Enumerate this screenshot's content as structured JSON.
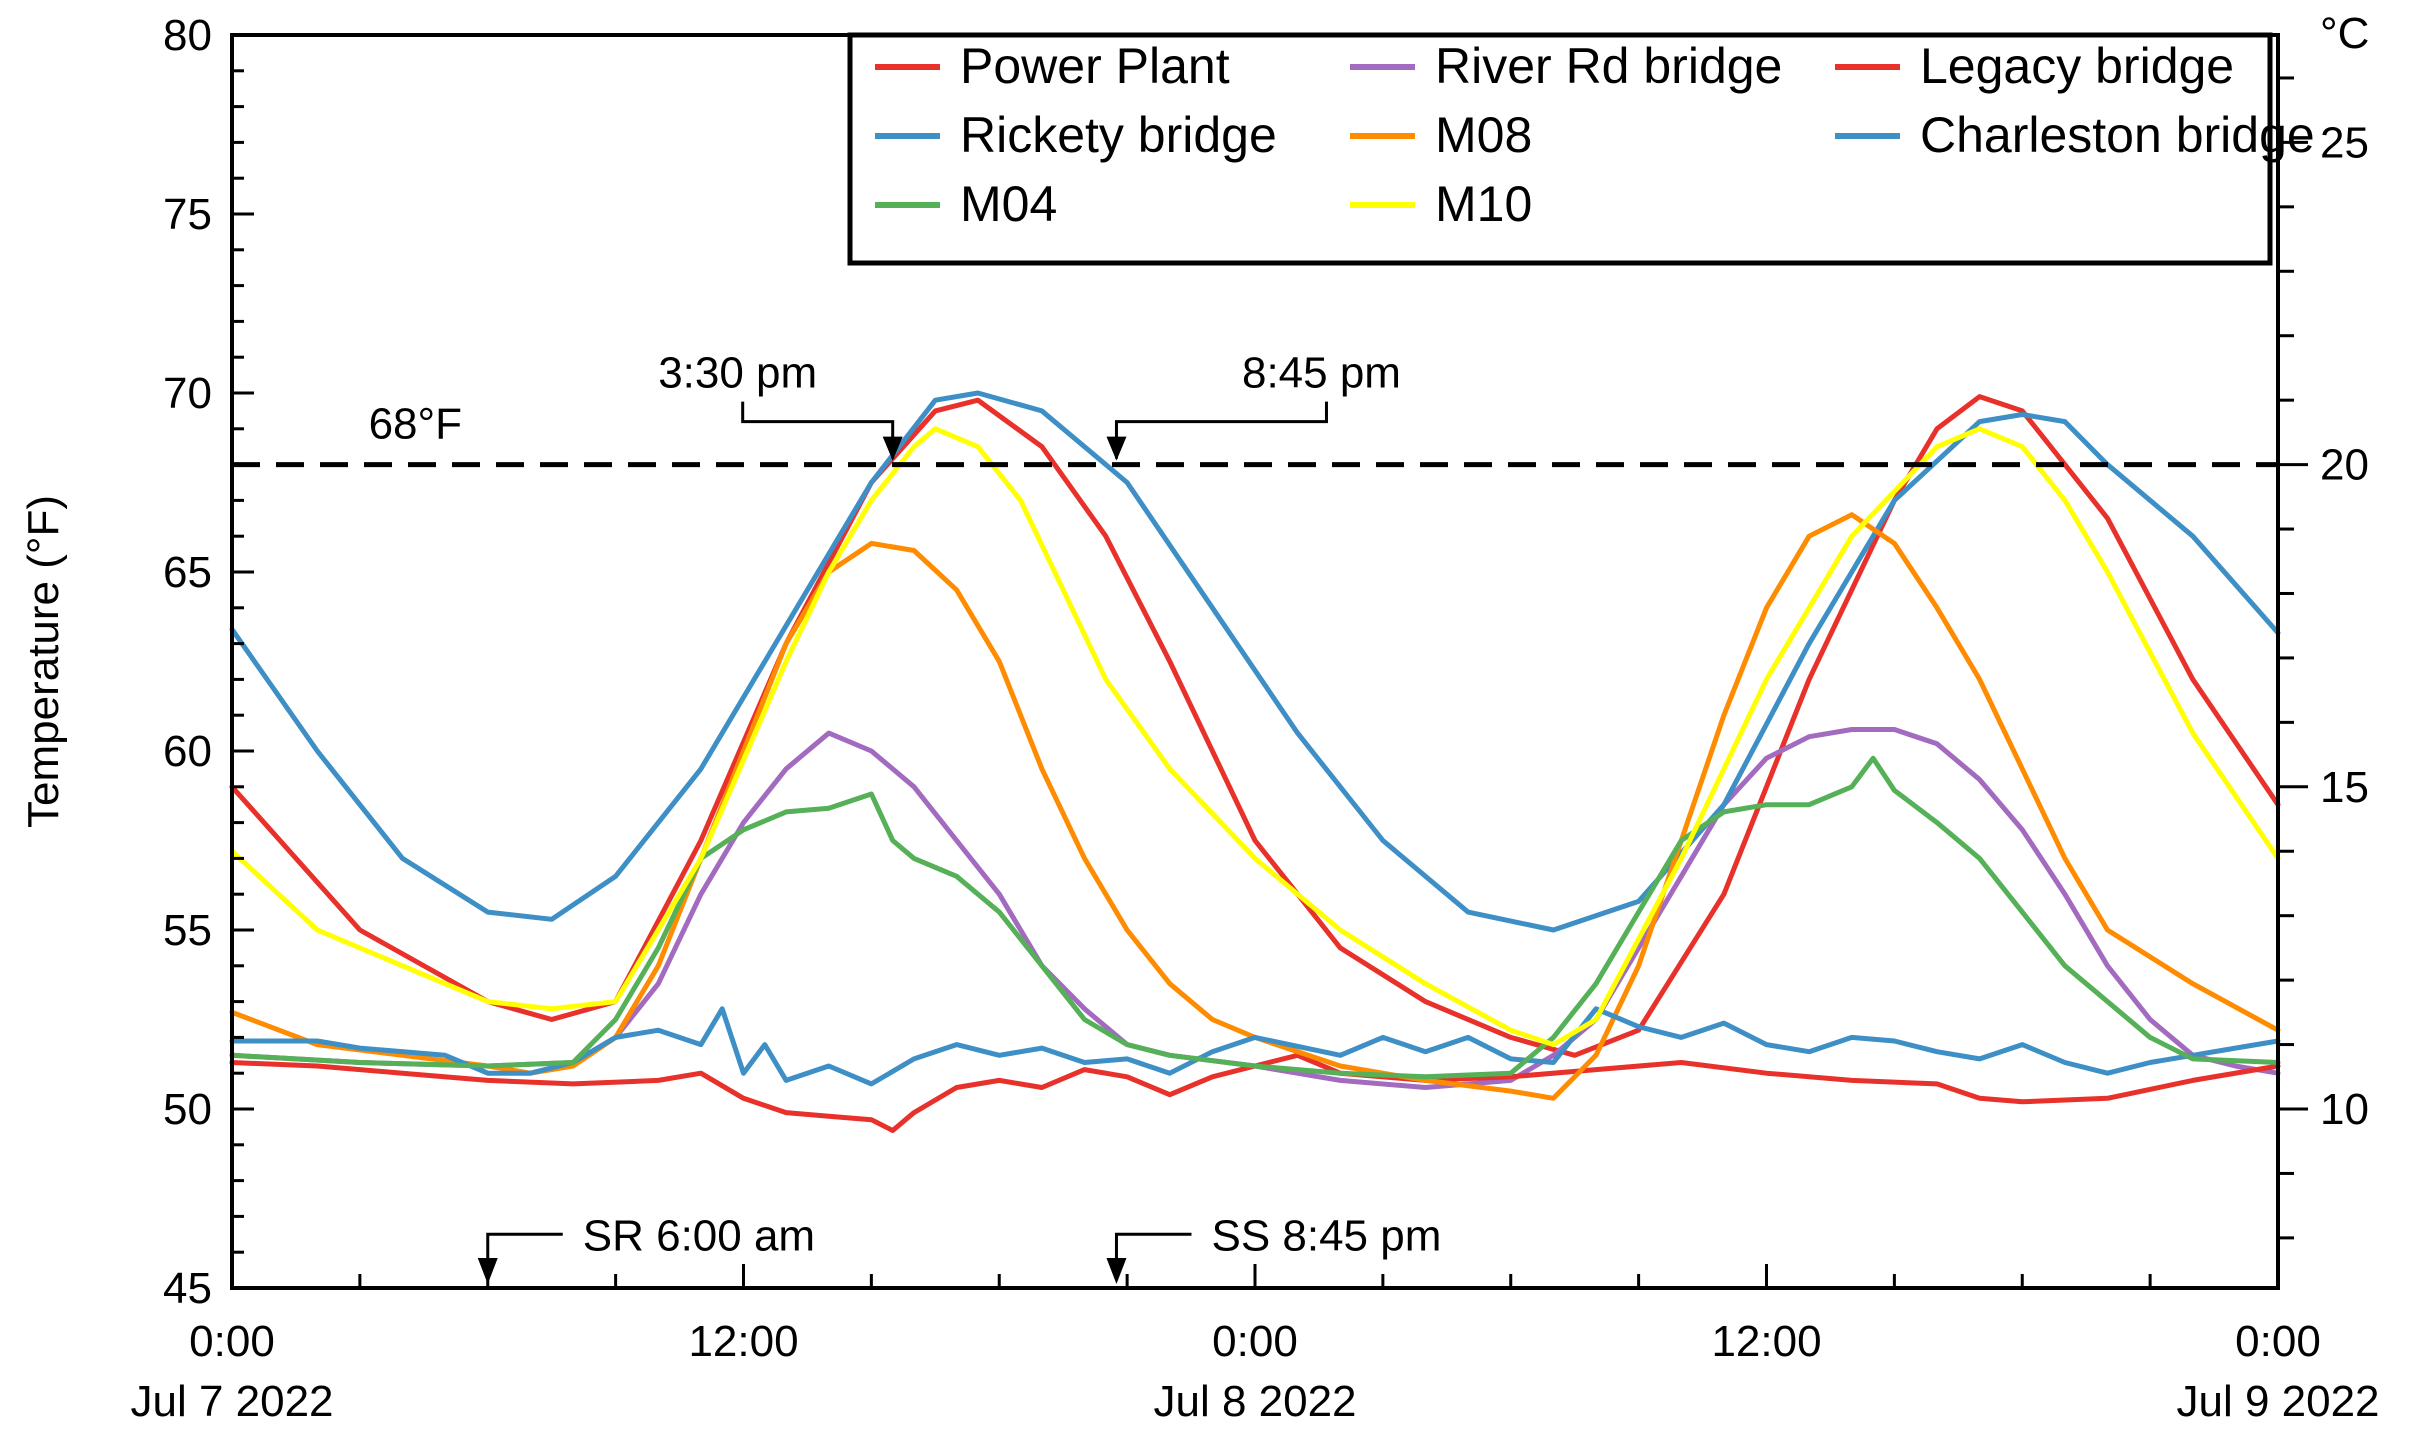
{
  "chart_data": {
    "type": "line",
    "xlabel": "",
    "ylabel": "Temperature (°F)",
    "y2label": "°C",
    "xlim_hours": [
      0,
      48
    ],
    "ylim": [
      45,
      80
    ],
    "y2ticks": [
      {
        "c": 10,
        "label": "10"
      },
      {
        "c": 15,
        "label": "15"
      },
      {
        "c": 20,
        "label": "20"
      },
      {
        "c": 25,
        "label": "25"
      }
    ],
    "yticks": [
      {
        "v": 45,
        "label": "45"
      },
      {
        "v": 50,
        "label": "50"
      },
      {
        "v": 55,
        "label": "55"
      },
      {
        "v": 60,
        "label": "60"
      },
      {
        "v": 65,
        "label": "65"
      },
      {
        "v": 70,
        "label": "70"
      },
      {
        "v": 75,
        "label": "75"
      },
      {
        "v": 80,
        "label": "80"
      }
    ],
    "xticks": [
      {
        "h": 0,
        "label": "0:00",
        "date": "Jul 7 2022"
      },
      {
        "h": 12,
        "label": "12:00",
        "date": ""
      },
      {
        "h": 24,
        "label": "0:00",
        "date": "Jul 8 2022"
      },
      {
        "h": 36,
        "label": "12:00",
        "date": ""
      },
      {
        "h": 48,
        "label": "0:00",
        "date": "Jul 9 2022"
      }
    ],
    "threshold": {
      "value": 68,
      "label": "68°F"
    },
    "annotations": [
      {
        "id": "start",
        "h": 15.5,
        "label": "3:30 pm",
        "side": "left"
      },
      {
        "id": "end",
        "h": 20.75,
        "label": "8:45 pm",
        "side": "right"
      }
    ],
    "sun_markers": [
      {
        "id": "sunrise",
        "h": 6.0,
        "label": "SR 6:00 am"
      },
      {
        "id": "sunset",
        "h": 20.75,
        "label": "SS 8:45 pm"
      }
    ],
    "legend_position": "top-right",
    "series": [
      {
        "name": "Power Plant",
        "color": "#e8312a",
        "points": [
          [
            0,
            59.0
          ],
          [
            3,
            55.0
          ],
          [
            6,
            53.0
          ],
          [
            7.5,
            52.5
          ],
          [
            9,
            53.0
          ],
          [
            11,
            57.5
          ],
          [
            13,
            63.0
          ],
          [
            15,
            67.5
          ],
          [
            16.5,
            69.5
          ],
          [
            17.5,
            69.8
          ],
          [
            19,
            68.5
          ],
          [
            20.5,
            66.0
          ],
          [
            22,
            62.5
          ],
          [
            24,
            57.5
          ],
          [
            26,
            54.5
          ],
          [
            28,
            53.0
          ],
          [
            30,
            52.0
          ],
          [
            31.5,
            51.5
          ],
          [
            33,
            52.2
          ],
          [
            35,
            56.0
          ],
          [
            37,
            62.0
          ],
          [
            39,
            67.0
          ],
          [
            40,
            69.0
          ],
          [
            41,
            69.9
          ],
          [
            42,
            69.5
          ],
          [
            44,
            66.5
          ],
          [
            46,
            62.0
          ],
          [
            48,
            58.5
          ]
        ]
      },
      {
        "name": "River Rd bridge",
        "color": "#a26bbf",
        "points": [
          [
            0,
            51.5
          ],
          [
            3,
            51.3
          ],
          [
            6,
            51.2
          ],
          [
            8,
            51.3
          ],
          [
            9,
            52.0
          ],
          [
            10,
            53.5
          ],
          [
            11,
            56.0
          ],
          [
            12,
            58.0
          ],
          [
            13,
            59.5
          ],
          [
            14,
            60.5
          ],
          [
            15,
            60.0
          ],
          [
            16,
            59.0
          ],
          [
            17,
            57.5
          ],
          [
            18,
            56.0
          ],
          [
            19,
            54.0
          ],
          [
            20,
            52.8
          ],
          [
            21,
            51.8
          ],
          [
            22,
            51.5
          ],
          [
            24,
            51.2
          ],
          [
            26,
            50.8
          ],
          [
            28,
            50.6
          ],
          [
            30,
            50.8
          ],
          [
            31,
            51.5
          ],
          [
            32,
            52.5
          ],
          [
            33,
            54.5
          ],
          [
            34,
            56.5
          ],
          [
            35,
            58.5
          ],
          [
            36,
            59.8
          ],
          [
            37,
            60.4
          ],
          [
            38,
            60.6
          ],
          [
            39,
            60.6
          ],
          [
            40,
            60.2
          ],
          [
            41,
            59.2
          ],
          [
            42,
            57.8
          ],
          [
            43,
            56.0
          ],
          [
            44,
            54.0
          ],
          [
            45,
            52.5
          ],
          [
            46,
            51.5
          ],
          [
            47,
            51.2
          ],
          [
            48,
            51.0
          ]
        ]
      },
      {
        "name": "Legacy bridge",
        "color": "#e8312a",
        "points": [
          [
            0,
            51.3
          ],
          [
            2,
            51.2
          ],
          [
            4,
            51.0
          ],
          [
            6,
            50.8
          ],
          [
            8,
            50.7
          ],
          [
            10,
            50.8
          ],
          [
            11,
            51.0
          ],
          [
            12,
            50.3
          ],
          [
            13,
            49.9
          ],
          [
            14,
            49.8
          ],
          [
            15,
            49.7
          ],
          [
            15.5,
            49.4
          ],
          [
            16,
            49.9
          ],
          [
            17,
            50.6
          ],
          [
            18,
            50.8
          ],
          [
            19,
            50.6
          ],
          [
            20,
            51.1
          ],
          [
            21,
            50.9
          ],
          [
            22,
            50.4
          ],
          [
            23,
            50.9
          ],
          [
            24,
            51.2
          ],
          [
            25,
            51.5
          ],
          [
            26,
            51.0
          ],
          [
            28,
            50.8
          ],
          [
            30,
            50.9
          ],
          [
            32,
            51.1
          ],
          [
            34,
            51.3
          ],
          [
            36,
            51.0
          ],
          [
            38,
            50.8
          ],
          [
            40,
            50.7
          ],
          [
            41,
            50.3
          ],
          [
            42,
            50.2
          ],
          [
            44,
            50.3
          ],
          [
            46,
            50.8
          ],
          [
            48,
            51.2
          ]
        ]
      },
      {
        "name": "Rickety bridge",
        "color": "#3d8fc6",
        "points": [
          [
            0,
            63.4
          ],
          [
            2,
            60.0
          ],
          [
            4,
            57.0
          ],
          [
            6,
            55.5
          ],
          [
            7.5,
            55.3
          ],
          [
            9,
            56.5
          ],
          [
            11,
            59.5
          ],
          [
            13,
            63.5
          ],
          [
            15,
            67.5
          ],
          [
            16.5,
            69.8
          ],
          [
            17.5,
            70.0
          ],
          [
            19,
            69.5
          ],
          [
            21,
            67.5
          ],
          [
            23,
            64.0
          ],
          [
            25,
            60.5
          ],
          [
            27,
            57.5
          ],
          [
            29,
            55.5
          ],
          [
            31,
            55.0
          ],
          [
            33,
            55.8
          ],
          [
            35,
            58.5
          ],
          [
            37,
            63.0
          ],
          [
            39,
            67.0
          ],
          [
            41,
            69.2
          ],
          [
            42,
            69.4
          ],
          [
            43,
            69.2
          ],
          [
            44,
            68.0
          ],
          [
            46,
            66.0
          ],
          [
            48,
            63.3
          ]
        ]
      },
      {
        "name": "M08",
        "color": "#ff8c00",
        "points": [
          [
            0,
            52.7
          ],
          [
            2,
            51.8
          ],
          [
            4,
            51.5
          ],
          [
            6,
            51.2
          ],
          [
            7,
            51.0
          ],
          [
            8,
            51.2
          ],
          [
            9,
            52.0
          ],
          [
            10,
            54.0
          ],
          [
            11,
            57.0
          ],
          [
            12,
            60.0
          ],
          [
            13,
            63.0
          ],
          [
            14,
            65.0
          ],
          [
            15,
            65.8
          ],
          [
            16,
            65.6
          ],
          [
            17,
            64.5
          ],
          [
            18,
            62.5
          ],
          [
            19,
            59.5
          ],
          [
            20,
            57.0
          ],
          [
            21,
            55.0
          ],
          [
            22,
            53.5
          ],
          [
            23,
            52.5
          ],
          [
            24,
            52.0
          ],
          [
            26,
            51.2
          ],
          [
            28,
            50.8
          ],
          [
            30,
            50.5
          ],
          [
            31,
            50.3
          ],
          [
            32,
            51.5
          ],
          [
            33,
            54.0
          ],
          [
            34,
            57.5
          ],
          [
            35,
            61.0
          ],
          [
            36,
            64.0
          ],
          [
            37,
            66.0
          ],
          [
            38,
            66.6
          ],
          [
            39,
            65.8
          ],
          [
            40,
            64.0
          ],
          [
            41,
            62.0
          ],
          [
            42,
            59.5
          ],
          [
            43,
            57.0
          ],
          [
            44,
            55.0
          ],
          [
            46,
            53.5
          ],
          [
            48,
            52.2
          ]
        ]
      },
      {
        "name": "Charleston bridge",
        "color": "#3d8fc6",
        "points": [
          [
            0,
            51.9
          ],
          [
            2,
            51.9
          ],
          [
            3,
            51.7
          ],
          [
            5,
            51.5
          ],
          [
            6,
            51.0
          ],
          [
            7,
            51.0
          ],
          [
            8,
            51.3
          ],
          [
            9,
            52.0
          ],
          [
            10,
            52.2
          ],
          [
            11,
            51.8
          ],
          [
            11.5,
            52.8
          ],
          [
            12,
            51.0
          ],
          [
            12.5,
            51.8
          ],
          [
            13,
            50.8
          ],
          [
            14,
            51.2
          ],
          [
            15,
            50.7
          ],
          [
            16,
            51.4
          ],
          [
            17,
            51.8
          ],
          [
            18,
            51.5
          ],
          [
            19,
            51.7
          ],
          [
            20,
            51.3
          ],
          [
            21,
            51.4
          ],
          [
            22,
            51.0
          ],
          [
            23,
            51.6
          ],
          [
            24,
            52.0
          ],
          [
            26,
            51.5
          ],
          [
            27,
            52.0
          ],
          [
            28,
            51.6
          ],
          [
            29,
            52.0
          ],
          [
            30,
            51.4
          ],
          [
            31,
            51.3
          ],
          [
            32,
            52.8
          ],
          [
            33,
            52.3
          ],
          [
            34,
            52.0
          ],
          [
            35,
            52.4
          ],
          [
            36,
            51.8
          ],
          [
            37,
            51.6
          ],
          [
            38,
            52.0
          ],
          [
            39,
            51.9
          ],
          [
            40,
            51.6
          ],
          [
            41,
            51.4
          ],
          [
            42,
            51.8
          ],
          [
            43,
            51.3
          ],
          [
            44,
            51.0
          ],
          [
            45,
            51.3
          ],
          [
            46,
            51.5
          ],
          [
            47,
            51.7
          ],
          [
            48,
            51.9
          ]
        ]
      },
      {
        "name": "M04",
        "color": "#55b058",
        "points": [
          [
            0,
            51.5
          ],
          [
            3,
            51.3
          ],
          [
            6,
            51.2
          ],
          [
            8,
            51.3
          ],
          [
            9,
            52.5
          ],
          [
            10,
            54.5
          ],
          [
            11,
            57.0
          ],
          [
            12,
            57.8
          ],
          [
            13,
            58.3
          ],
          [
            14,
            58.4
          ],
          [
            15,
            58.8
          ],
          [
            15.5,
            57.5
          ],
          [
            16,
            57.0
          ],
          [
            17,
            56.5
          ],
          [
            18,
            55.5
          ],
          [
            19,
            54.0
          ],
          [
            20,
            52.5
          ],
          [
            21,
            51.8
          ],
          [
            22,
            51.5
          ],
          [
            24,
            51.2
          ],
          [
            26,
            51.0
          ],
          [
            28,
            50.9
          ],
          [
            30,
            51.0
          ],
          [
            31,
            52.0
          ],
          [
            32,
            53.5
          ],
          [
            33,
            55.5
          ],
          [
            34,
            57.5
          ],
          [
            35,
            58.3
          ],
          [
            36,
            58.5
          ],
          [
            37,
            58.5
          ],
          [
            38,
            59.0
          ],
          [
            38.5,
            59.8
          ],
          [
            39,
            58.9
          ],
          [
            40,
            58.0
          ],
          [
            41,
            57.0
          ],
          [
            42,
            55.5
          ],
          [
            43,
            54.0
          ],
          [
            44,
            53.0
          ],
          [
            45,
            52.0
          ],
          [
            46,
            51.4
          ],
          [
            48,
            51.3
          ]
        ]
      },
      {
        "name": "M10",
        "color": "#ffff00",
        "points": [
          [
            0,
            57.2
          ],
          [
            2,
            55.0
          ],
          [
            4,
            54.0
          ],
          [
            6,
            53.0
          ],
          [
            7.5,
            52.8
          ],
          [
            9,
            53.0
          ],
          [
            11,
            57.0
          ],
          [
            13,
            62.5
          ],
          [
            14,
            65.0
          ],
          [
            15,
            67.0
          ],
          [
            16,
            68.5
          ],
          [
            16.5,
            69.0
          ],
          [
            17.5,
            68.5
          ],
          [
            18.5,
            67.0
          ],
          [
            19.5,
            64.5
          ],
          [
            20.5,
            62.0
          ],
          [
            22,
            59.5
          ],
          [
            24,
            57.0
          ],
          [
            26,
            55.0
          ],
          [
            28,
            53.5
          ],
          [
            30,
            52.2
          ],
          [
            31,
            51.8
          ],
          [
            32,
            52.5
          ],
          [
            34,
            57.0
          ],
          [
            36,
            62.0
          ],
          [
            38,
            66.0
          ],
          [
            40,
            68.5
          ],
          [
            41,
            69.0
          ],
          [
            42,
            68.5
          ],
          [
            43,
            67.0
          ],
          [
            44,
            65.0
          ],
          [
            46,
            60.5
          ],
          [
            48,
            57.0
          ]
        ]
      }
    ]
  }
}
